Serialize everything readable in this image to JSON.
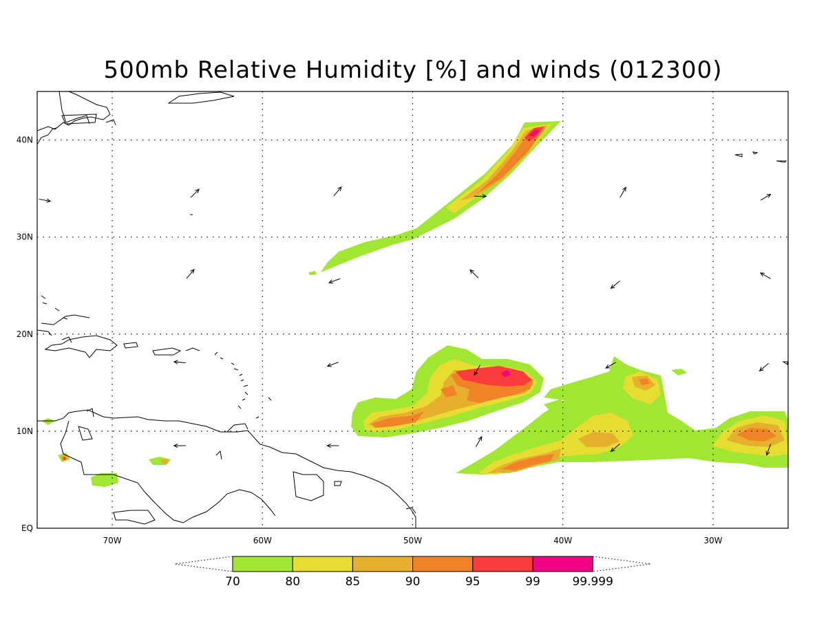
{
  "title": "500mb Relative Humidity [%] and winds (012300)",
  "map": {
    "lon_min": -75,
    "lon_max": -25,
    "lat_min": 0,
    "lat_max": 45,
    "lat_ticks": [
      {
        "value": 0,
        "label": "EQ"
      },
      {
        "value": 10,
        "label": "10N"
      },
      {
        "value": 20,
        "label": "20N"
      },
      {
        "value": 30,
        "label": "30N"
      },
      {
        "value": 40,
        "label": "40N"
      }
    ],
    "lon_ticks": [
      {
        "value": -70,
        "label": "70W"
      },
      {
        "value": -60,
        "label": "60W"
      },
      {
        "value": -50,
        "label": "50W"
      },
      {
        "value": -40,
        "label": "40W"
      },
      {
        "value": -30,
        "label": "30W"
      }
    ]
  },
  "colorbar": {
    "bins": [
      {
        "color": "#a0e632"
      },
      {
        "color": "#e6dc32"
      },
      {
        "color": "#e6af2d"
      },
      {
        "color": "#f08228"
      },
      {
        "color": "#fa3c3c"
      },
      {
        "color": "#f00082"
      }
    ],
    "labels": [
      "70",
      "80",
      "85",
      "90",
      "95",
      "99",
      "99.999"
    ]
  },
  "wind_vectors": [
    {
      "lon": -64.5,
      "lat": 34.5,
      "dir": 45
    },
    {
      "lon": -55,
      "lat": 34.7,
      "dir": 40
    },
    {
      "lon": -45.5,
      "lat": 34.2,
      "dir": 90
    },
    {
      "lon": -36,
      "lat": 34.6,
      "dir": 30
    },
    {
      "lon": -26.5,
      "lat": 34.1,
      "dir": 60
    },
    {
      "lon": -74.5,
      "lat": 33.8,
      "dir": 100
    },
    {
      "lon": -64.8,
      "lat": 26.2,
      "dir": 40
    },
    {
      "lon": -55.2,
      "lat": 25.5,
      "dir": 250
    },
    {
      "lon": -45.9,
      "lat": 26.2,
      "dir": 315
    },
    {
      "lon": -36.5,
      "lat": 25.1,
      "dir": 230
    },
    {
      "lon": -26.5,
      "lat": 26,
      "dir": 300
    },
    {
      "lon": -65.5,
      "lat": 17.1,
      "dir": 275
    },
    {
      "lon": -55.3,
      "lat": 16.9,
      "dir": 250
    },
    {
      "lon": -45.7,
      "lat": 16.3,
      "dir": 210
    },
    {
      "lon": -36.8,
      "lat": 16.8,
      "dir": 240
    },
    {
      "lon": -26.6,
      "lat": 16.6,
      "dir": 230
    },
    {
      "lon": -65.5,
      "lat": 8.5,
      "dir": 270
    },
    {
      "lon": -55.3,
      "lat": 8.5,
      "dir": 270
    },
    {
      "lon": -45.6,
      "lat": 8.9,
      "dir": 30
    },
    {
      "lon": -36.5,
      "lat": 8.3,
      "dir": 230
    },
    {
      "lon": -26.3,
      "lat": 8.1,
      "dir": 200
    }
  ]
}
